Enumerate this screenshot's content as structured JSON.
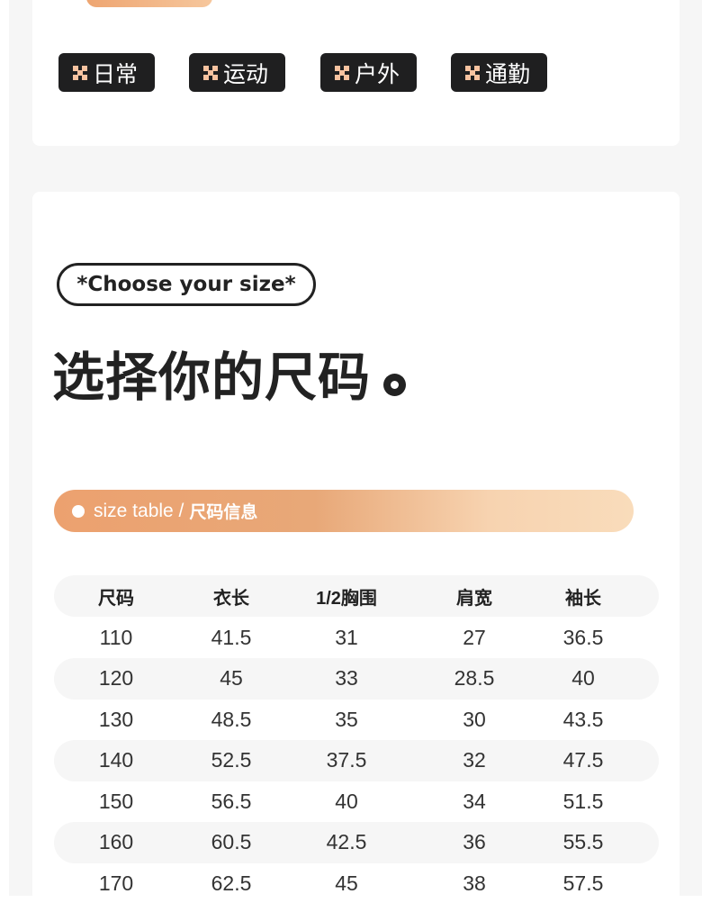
{
  "tags": [
    "日常",
    "运动",
    "户外",
    "通勤"
  ],
  "size_pill": "*Choose your size*",
  "title": "选择你的尺码",
  "section_bar": {
    "en": "size table /",
    "zh": "尺码信息"
  },
  "table": {
    "headers": [
      "尺码",
      "衣长",
      "1/2胸围",
      "肩宽",
      "袖长"
    ],
    "rows": [
      [
        "110",
        "41.5",
        "31",
        "27",
        "36.5"
      ],
      [
        "120",
        "45",
        "33",
        "28.5",
        "40"
      ],
      [
        "130",
        "48.5",
        "35",
        "30",
        "43.5"
      ],
      [
        "140",
        "52.5",
        "37.5",
        "32",
        "47.5"
      ],
      [
        "150",
        "56.5",
        "40",
        "34",
        "51.5"
      ],
      [
        "160",
        "60.5",
        "42.5",
        "36",
        "55.5"
      ],
      [
        "170",
        "62.5",
        "45",
        "38",
        "57.5"
      ]
    ]
  },
  "colors": {
    "accent": "#eca16f",
    "tag_bg": "#1f1f20",
    "tag_icon": "#f8c3a0"
  }
}
